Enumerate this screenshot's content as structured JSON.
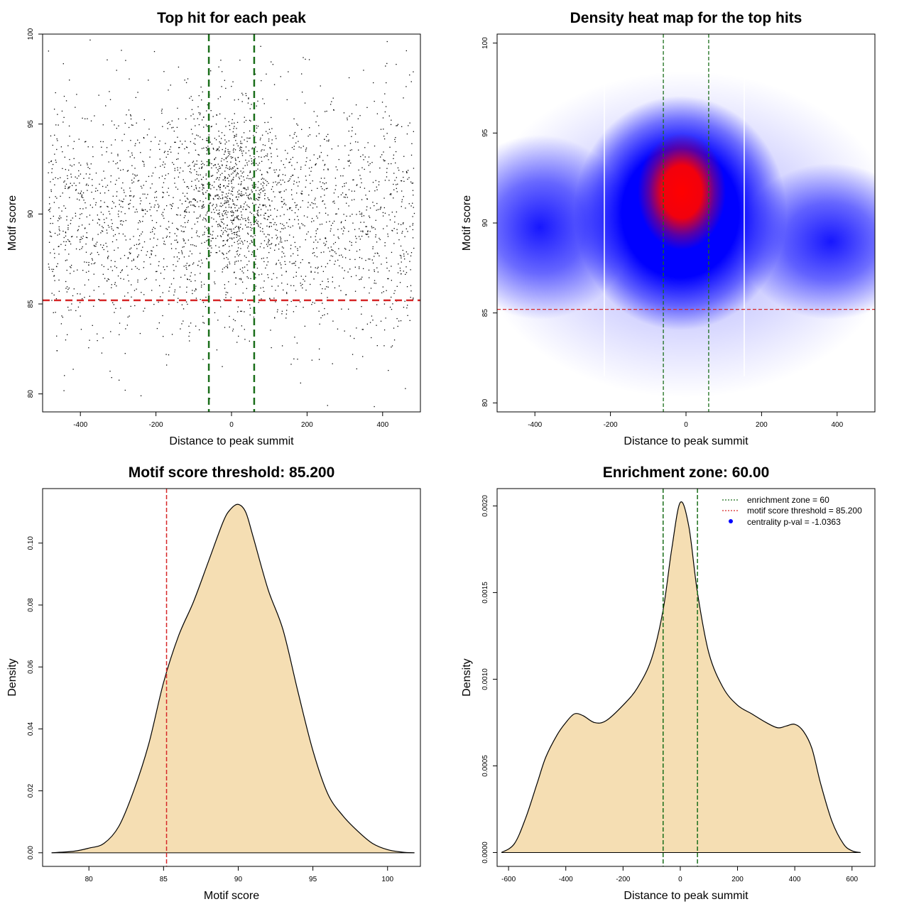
{
  "colors": {
    "threshold": "#d62728",
    "zone": "#1a6e1a",
    "fill": "#f5deb3",
    "heat_low": "#ffffff",
    "heat_mid": "#0000ff",
    "heat_high": "#ff0000",
    "legend_dot": "#0000ff"
  },
  "chart_data": [
    {
      "id": "scatter",
      "type": "scatter",
      "title": "Top hit for each peak",
      "xlabel": "Distance to peak summit",
      "ylabel": "Motif score",
      "xlim": [
        -500,
        500
      ],
      "ylim": [
        79,
        100
      ],
      "xticks": [
        -400,
        -200,
        0,
        200,
        400
      ],
      "yticks": [
        80,
        85,
        90,
        95,
        100
      ],
      "xtick_labels": [
        "-400",
        "-200",
        "0",
        "200",
        "400"
      ],
      "ytick_labels": [
        "80",
        "85",
        "90",
        "95",
        "100"
      ],
      "hline": 85.2,
      "vlines": [
        -60,
        60
      ],
      "n_points": 3000,
      "score_mean": 89.8,
      "score_sd": 3.4
    },
    {
      "id": "heatmap",
      "type": "heatmap",
      "title": "Density heat map for the top hits",
      "xlabel": "Distance to peak summit",
      "ylabel": "Motif score",
      "xlim": [
        -500,
        500
      ],
      "ylim": [
        79.5,
        100.5
      ],
      "xticks": [
        -400,
        -200,
        0,
        200,
        400
      ],
      "yticks": [
        80,
        85,
        90,
        95,
        100
      ],
      "xtick_labels": [
        "-400",
        "-200",
        "0",
        "200",
        "400"
      ],
      "ytick_labels": [
        "80",
        "85",
        "90",
        "95",
        "100"
      ],
      "hline": 85.2,
      "vlines": [
        -60,
        60
      ],
      "density_peak": [
        0,
        90.8
      ]
    },
    {
      "id": "score_density",
      "type": "area",
      "title": "Motif score threshold: 85.200",
      "xlabel": "Motif score",
      "ylabel": "Density",
      "xlim": [
        76.9,
        102.2
      ],
      "ylim": [
        -0.0044,
        0.1176
      ],
      "xticks": [
        80,
        85,
        90,
        95,
        100
      ],
      "yticks": [
        0.0,
        0.02,
        0.04,
        0.06,
        0.08,
        0.1
      ],
      "xtick_labels": [
        "80",
        "85",
        "90",
        "95",
        "100"
      ],
      "ytick_labels": [
        "0.00",
        "0.02",
        "0.04",
        "0.06",
        "0.08",
        "0.10"
      ],
      "vline": 85.2,
      "x": [
        77.5,
        79,
        80,
        81,
        82,
        83,
        84,
        85,
        86,
        87,
        88,
        89,
        89.5,
        90,
        90.5,
        91,
        92,
        93,
        94,
        95,
        96,
        97,
        98,
        99,
        100,
        101,
        101.8
      ],
      "y": [
        0.0,
        0.0005,
        0.0015,
        0.003,
        0.0085,
        0.02,
        0.035,
        0.055,
        0.07,
        0.081,
        0.094,
        0.107,
        0.111,
        0.1125,
        0.11,
        0.102,
        0.085,
        0.072,
        0.052,
        0.033,
        0.019,
        0.012,
        0.007,
        0.003,
        0.001,
        0.0002,
        0.0
      ]
    },
    {
      "id": "distance_density",
      "type": "area",
      "title": "Enrichment zone: 60.00",
      "xlabel": "Distance to peak summit",
      "ylabel": "Density",
      "xlim": [
        -640,
        680
      ],
      "ylim": [
        -8e-05,
        0.0021
      ],
      "xticks": [
        -600,
        -400,
        -200,
        0,
        200,
        400,
        600
      ],
      "yticks": [
        0.0,
        0.0005,
        0.001,
        0.0015,
        0.002
      ],
      "xtick_labels": [
        "-600",
        "-400",
        "-200",
        "0",
        "200",
        "400",
        "600"
      ],
      "ytick_labels": [
        "0.0000",
        "0.0005",
        "0.0010",
        "0.0015",
        "0.0020"
      ],
      "vlines": [
        -60,
        60
      ],
      "x": [
        -625,
        -580,
        -540,
        -500,
        -470,
        -430,
        -400,
        -370,
        -340,
        -300,
        -260,
        -200,
        -150,
        -100,
        -60,
        -30,
        0,
        30,
        60,
        100,
        150,
        200,
        250,
        300,
        340,
        370,
        400,
        430,
        460,
        490,
        530,
        570,
        600,
        630
      ],
      "y": [
        0.0,
        5e-05,
        0.0002,
        0.0004,
        0.00055,
        0.00068,
        0.00075,
        0.0008,
        0.00079,
        0.00075,
        0.00076,
        0.00085,
        0.00095,
        0.00112,
        0.0014,
        0.00175,
        0.00202,
        0.00188,
        0.0015,
        0.00115,
        0.00095,
        0.00085,
        0.0008,
        0.00075,
        0.00072,
        0.00073,
        0.00074,
        0.0007,
        0.0006,
        0.0004,
        0.00018,
        5e-05,
        1e-05,
        0.0
      ],
      "legend": [
        {
          "label": "enrichment zone = 60",
          "style": "zone"
        },
        {
          "label": "motif score threshold = 85.200",
          "style": "threshold"
        },
        {
          "label": "centrality p-val = -1.0363",
          "style": "dot"
        }
      ]
    }
  ]
}
